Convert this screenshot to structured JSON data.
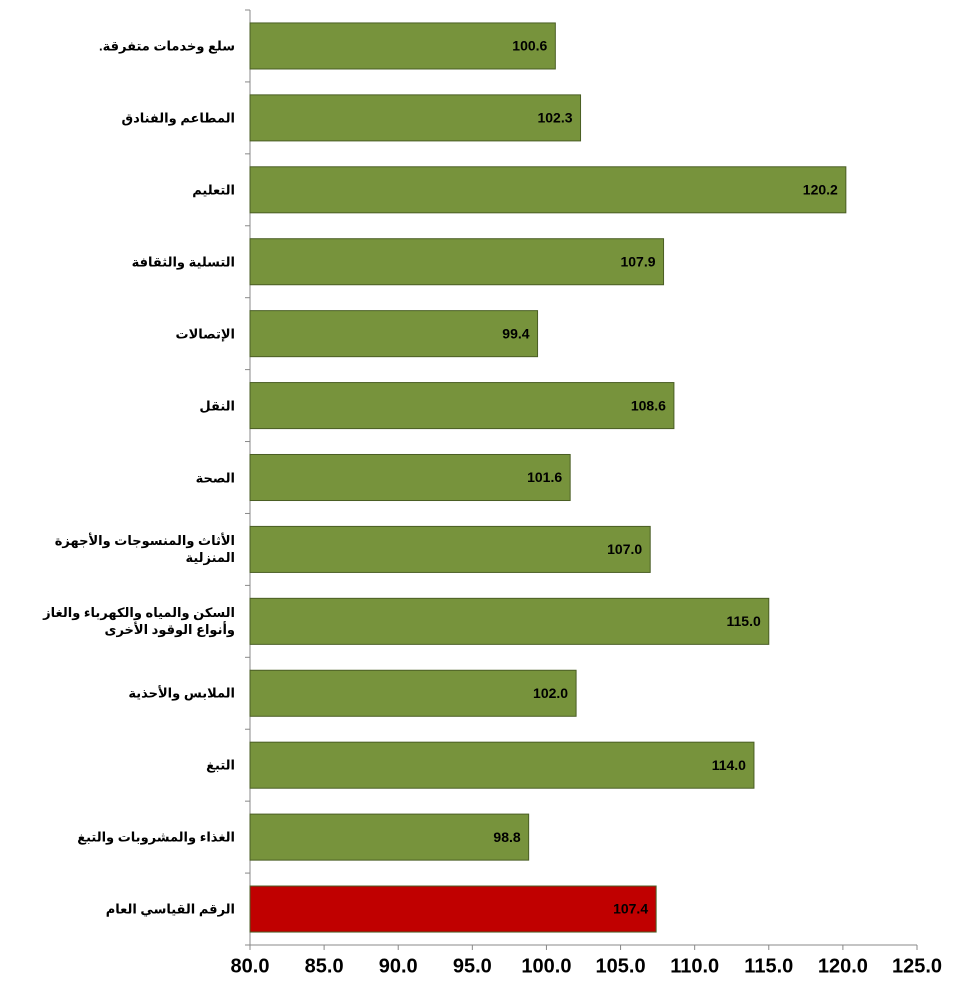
{
  "chart_data": {
    "type": "bar",
    "orientation": "horizontal",
    "categories": [
      "سلع وخدمات متفرقة.",
      "المطاعم والفنادق",
      "التعليم",
      "التسلية والثقافة",
      "الإتصالات",
      "النقل",
      "الصحة",
      "الأثاث والمنسوجات والأجهزة المنزلية",
      "السكن والمياه والكهرباء والغاز وأنواع الوقود الأخرى",
      "الملابس والأحذية",
      "التبغ",
      "الغذاء والمشروبات والتبغ",
      "الرقم القياسي العام"
    ],
    "values": [
      100.6,
      102.3,
      120.2,
      107.9,
      99.4,
      108.6,
      101.6,
      107.0,
      115.0,
      102.0,
      114.0,
      98.8,
      107.4
    ],
    "value_labels": [
      "100.6",
      "102.3",
      "120.2",
      "107.9",
      "99.4",
      "108.6",
      "101.6",
      "107.0",
      "115.0",
      "102.0",
      "114.0",
      "98.8",
      "107.4"
    ],
    "colors": [
      "#77933c",
      "#77933c",
      "#77933c",
      "#77933c",
      "#77933c",
      "#77933c",
      "#77933c",
      "#77933c",
      "#77933c",
      "#77933c",
      "#77933c",
      "#77933c",
      "#c00000"
    ],
    "xlim": [
      80,
      125
    ],
    "xticks": [
      {
        "value": 80,
        "label": "80.0"
      },
      {
        "value": 85,
        "label": "85.0"
      },
      {
        "value": 90,
        "label": "90.0"
      },
      {
        "value": 95,
        "label": "95.0"
      },
      {
        "value": 100,
        "label": "100.0"
      },
      {
        "value": 105,
        "label": "105.0"
      },
      {
        "value": 110,
        "label": "110.0"
      },
      {
        "value": 115,
        "label": "115.0"
      },
      {
        "value": 120,
        "label": "120.0"
      },
      {
        "value": 125,
        "label": "125.0"
      }
    ]
  }
}
